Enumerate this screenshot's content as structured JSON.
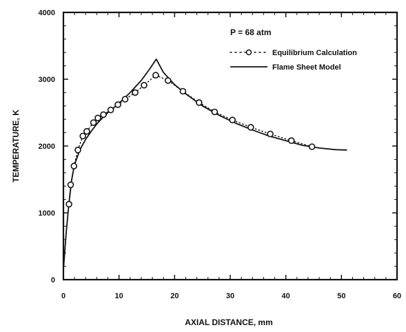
{
  "chart_data": {
    "type": "line",
    "title": "",
    "xlabel": "AXIAL DISTANCE, mm",
    "ylabel": "TEMPERATURE, K",
    "xlim": [
      0,
      60
    ],
    "ylim": [
      0,
      4000
    ],
    "x_ticks": [
      "0",
      "10",
      "20",
      "30",
      "40",
      "50",
      "60"
    ],
    "y_ticks": [
      "0",
      "1000",
      "2000",
      "3000",
      "4000"
    ],
    "grid": false,
    "legend_position": "top-right",
    "annotation": "P = 68 atm",
    "series": [
      {
        "name": "Equilibrium Calculation",
        "style": "dotted-circles",
        "x": [
          1.0,
          1.3,
          1.9,
          2.6,
          3.5,
          4.2,
          5.4,
          6.2,
          7.2,
          8.5,
          9.8,
          11.1,
          12.9,
          14.5,
          16.6,
          18.8,
          21.5,
          24.4,
          27.2,
          30.4,
          33.7,
          37.2,
          41.0,
          44.7
        ],
        "y": [
          1130,
          1420,
          1700,
          1940,
          2150,
          2220,
          2350,
          2420,
          2470,
          2540,
          2620,
          2700,
          2800,
          2910,
          3060,
          2980,
          2820,
          2650,
          2510,
          2390,
          2280,
          2180,
          2080,
          1990
        ]
      },
      {
        "name": "Flame Sheet Model",
        "style": "solid",
        "x": [
          0,
          0.5,
          1.0,
          1.5,
          2.0,
          3.0,
          4.0,
          5.0,
          6.0,
          7.0,
          8.0,
          10.0,
          12.0,
          14.0,
          15.5,
          16.7,
          18.0,
          20.0,
          22.0,
          25.0,
          28.0,
          31.0,
          34.0,
          37.0,
          40.0,
          43.0,
          46.0,
          49.0,
          51.0
        ],
        "y": [
          150,
          700,
          1150,
          1500,
          1720,
          1950,
          2100,
          2220,
          2330,
          2420,
          2500,
          2640,
          2800,
          2980,
          3150,
          3300,
          3100,
          2920,
          2780,
          2600,
          2460,
          2340,
          2240,
          2150,
          2080,
          2010,
          1970,
          1945,
          1940
        ]
      }
    ]
  }
}
